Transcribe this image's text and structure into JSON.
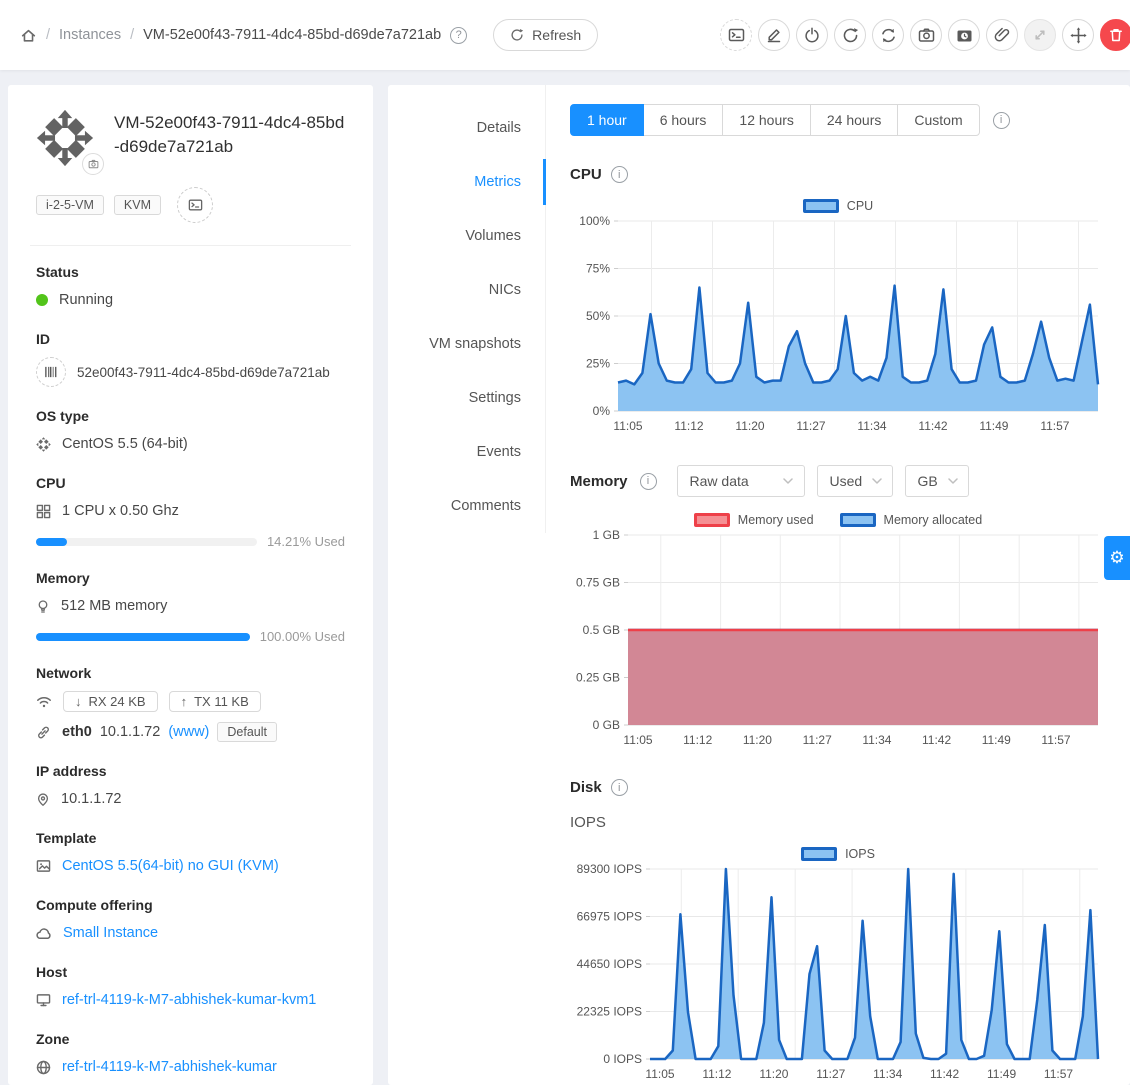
{
  "header": {
    "breadcrumb": {
      "section": "Instances",
      "page": "VM-52e00f43-7911-4dc4-85bd-d69de7a721ab",
      "separator": "/"
    },
    "refresh_label": "Refresh",
    "toolbar_actions": [
      "view-console",
      "edit-instance",
      "stop-instance",
      "reboot-instance",
      "reinstall-instance",
      "take-snapshot",
      "take-vm-snapshot",
      "attach-iso",
      "scale-vm",
      "migrate-instance",
      "destroy-instance"
    ]
  },
  "sidebar": {
    "name": "VM-52e00f43-7911-4dc4-85bd-d69de7a721ab",
    "tags": [
      "i-2-5-VM",
      "KVM"
    ],
    "status": {
      "label": "Status",
      "value": "Running",
      "color": "#52c41a"
    },
    "id": {
      "label": "ID",
      "value": "52e00f43-7911-4dc4-85bd-d69de7a721ab"
    },
    "os": {
      "label": "OS type",
      "value": "CentOS 5.5 (64-bit)"
    },
    "cpu": {
      "label": "CPU",
      "value": "1 CPU x 0.50 Ghz",
      "used": "14.21% Used",
      "used_pct": 14.21
    },
    "memory": {
      "label": "Memory",
      "value": "512 MB memory",
      "used": "100.00% Used",
      "used_pct": 100
    },
    "network": {
      "label": "Network",
      "rx": "RX 24 KB",
      "tx": "TX 11 KB",
      "rx_arrow": "↓",
      "tx_arrow": "↑",
      "nic": "eth0",
      "ip": "10.1.1.72",
      "net": "(www)",
      "tag": "Default"
    },
    "ip": {
      "label": "IP address",
      "value": "10.1.1.72"
    },
    "template": {
      "label": "Template",
      "value": "CentOS 5.5(64-bit) no GUI (KVM)"
    },
    "offering": {
      "label": "Compute offering",
      "value": "Small Instance"
    },
    "host": {
      "label": "Host",
      "value": "ref-trl-4119-k-M7-abhishek-kumar-kvm1"
    },
    "zone": {
      "label": "Zone",
      "value": "ref-trl-4119-k-M7-abhishek-kumar"
    }
  },
  "tabs": [
    {
      "label": "Details",
      "active": false
    },
    {
      "label": "Metrics",
      "active": true
    },
    {
      "label": "Volumes",
      "active": false
    },
    {
      "label": "NICs",
      "active": false
    },
    {
      "label": "VM snapshots",
      "active": false
    },
    {
      "label": "Settings",
      "active": false
    },
    {
      "label": "Events",
      "active": false
    },
    {
      "label": "Comments",
      "active": false
    }
  ],
  "metrics": {
    "ranges": [
      "1 hour",
      "6 hours",
      "12 hours",
      "24 hours",
      "Custom"
    ],
    "active_range": "1 hour",
    "cpu_title": "CPU",
    "memory_title": "Memory",
    "disk_title": "Disk",
    "iops_subtitle": "IOPS",
    "memory_selects": [
      {
        "value": "Raw data"
      },
      {
        "value": "Used"
      },
      {
        "value": "GB"
      }
    ]
  },
  "colors": {
    "primary": "#1890ff",
    "blue_line": "#1a66c2",
    "blue_fill": "#8cc3f2",
    "red_line": "#ee4049",
    "red_fill": "#d28795",
    "running": "#52c41a",
    "danger": "#f5484d"
  },
  "chart_data": [
    {
      "type": "area",
      "title": "CPU",
      "x_labels": [
        "11:05",
        "11:12",
        "11:20",
        "11:27",
        "11:34",
        "11:42",
        "11:49",
        "11:57"
      ],
      "ylim": [
        0,
        100
      ],
      "y_ticks": [
        "0%",
        "25%",
        "50%",
        "75%",
        "100%"
      ],
      "grid": true,
      "legend_position": "top",
      "legend": [
        {
          "label": "CPU",
          "border": "#1a66c2",
          "fill": "#8cc3f2"
        }
      ],
      "series": [
        {
          "name": "CPU",
          "border": "#1a66c2",
          "fill": "#8cc3f2",
          "values": [
            15,
            16,
            14,
            20,
            51,
            25,
            16,
            15,
            15,
            22,
            65,
            20,
            15,
            15,
            16,
            25,
            57,
            18,
            15,
            16,
            16,
            34,
            42,
            25,
            15,
            15,
            16,
            22,
            50,
            20,
            16,
            18,
            16,
            28,
            66,
            18,
            15,
            15,
            16,
            30,
            64,
            22,
            15,
            15,
            16,
            35,
            44,
            18,
            15,
            15,
            16,
            30,
            47,
            28,
            16,
            17,
            16,
            36,
            56,
            14
          ]
        }
      ]
    },
    {
      "type": "area",
      "title": "Memory",
      "x_labels": [
        "11:05",
        "11:12",
        "11:20",
        "11:27",
        "11:34",
        "11:42",
        "11:49",
        "11:57"
      ],
      "ylim": [
        0,
        1
      ],
      "y_ticks": [
        "0 GB",
        "0.25 GB",
        "0.5 GB",
        "0.75 GB",
        "1 GB"
      ],
      "grid": true,
      "legend_position": "top",
      "legend": [
        {
          "label": "Memory used",
          "border": "#ee4049",
          "fill": "#f59094"
        },
        {
          "label": "Memory allocated",
          "border": "#1a66c2",
          "fill": "#8cc3f2"
        }
      ],
      "series": [
        {
          "name": "Memory allocated",
          "border": "#1a66c2",
          "fill": "#8cc3f2",
          "values": [
            0.5,
            0.5
          ]
        },
        {
          "name": "Memory used",
          "border": "#ee4049",
          "fill": "#d28795",
          "values": [
            0.5,
            0.5
          ]
        }
      ]
    },
    {
      "type": "area",
      "title": "IOPS",
      "x_labels": [
        "11:05",
        "11:12",
        "11:20",
        "11:27",
        "11:34",
        "11:42",
        "11:49",
        "11:57"
      ],
      "ylim": [
        0,
        89300
      ],
      "y_ticks": [
        "0 IOPS",
        "22325 IOPS",
        "44650 IOPS",
        "66975 IOPS",
        "89300 IOPS"
      ],
      "grid": true,
      "legend_position": "top",
      "legend": [
        {
          "label": "IOPS",
          "border": "#1a66c2",
          "fill": "#8cc3f2"
        }
      ],
      "series": [
        {
          "name": "IOPS",
          "border": "#1a66c2",
          "fill": "#8cc3f2",
          "values": [
            0,
            0,
            0,
            4000,
            68000,
            22000,
            0,
            0,
            0,
            6000,
            89300,
            30000,
            0,
            0,
            0,
            17000,
            76000,
            9000,
            0,
            0,
            0,
            40000,
            53000,
            4000,
            0,
            0,
            0,
            10000,
            65000,
            20000,
            0,
            0,
            0,
            8000,
            89300,
            12000,
            500,
            0,
            0,
            2500,
            87000,
            9000,
            0,
            0,
            1500,
            23000,
            60000,
            7000,
            0,
            0,
            0,
            28000,
            63000,
            4000,
            0,
            0,
            0,
            20000,
            70000,
            0
          ]
        }
      ]
    }
  ]
}
